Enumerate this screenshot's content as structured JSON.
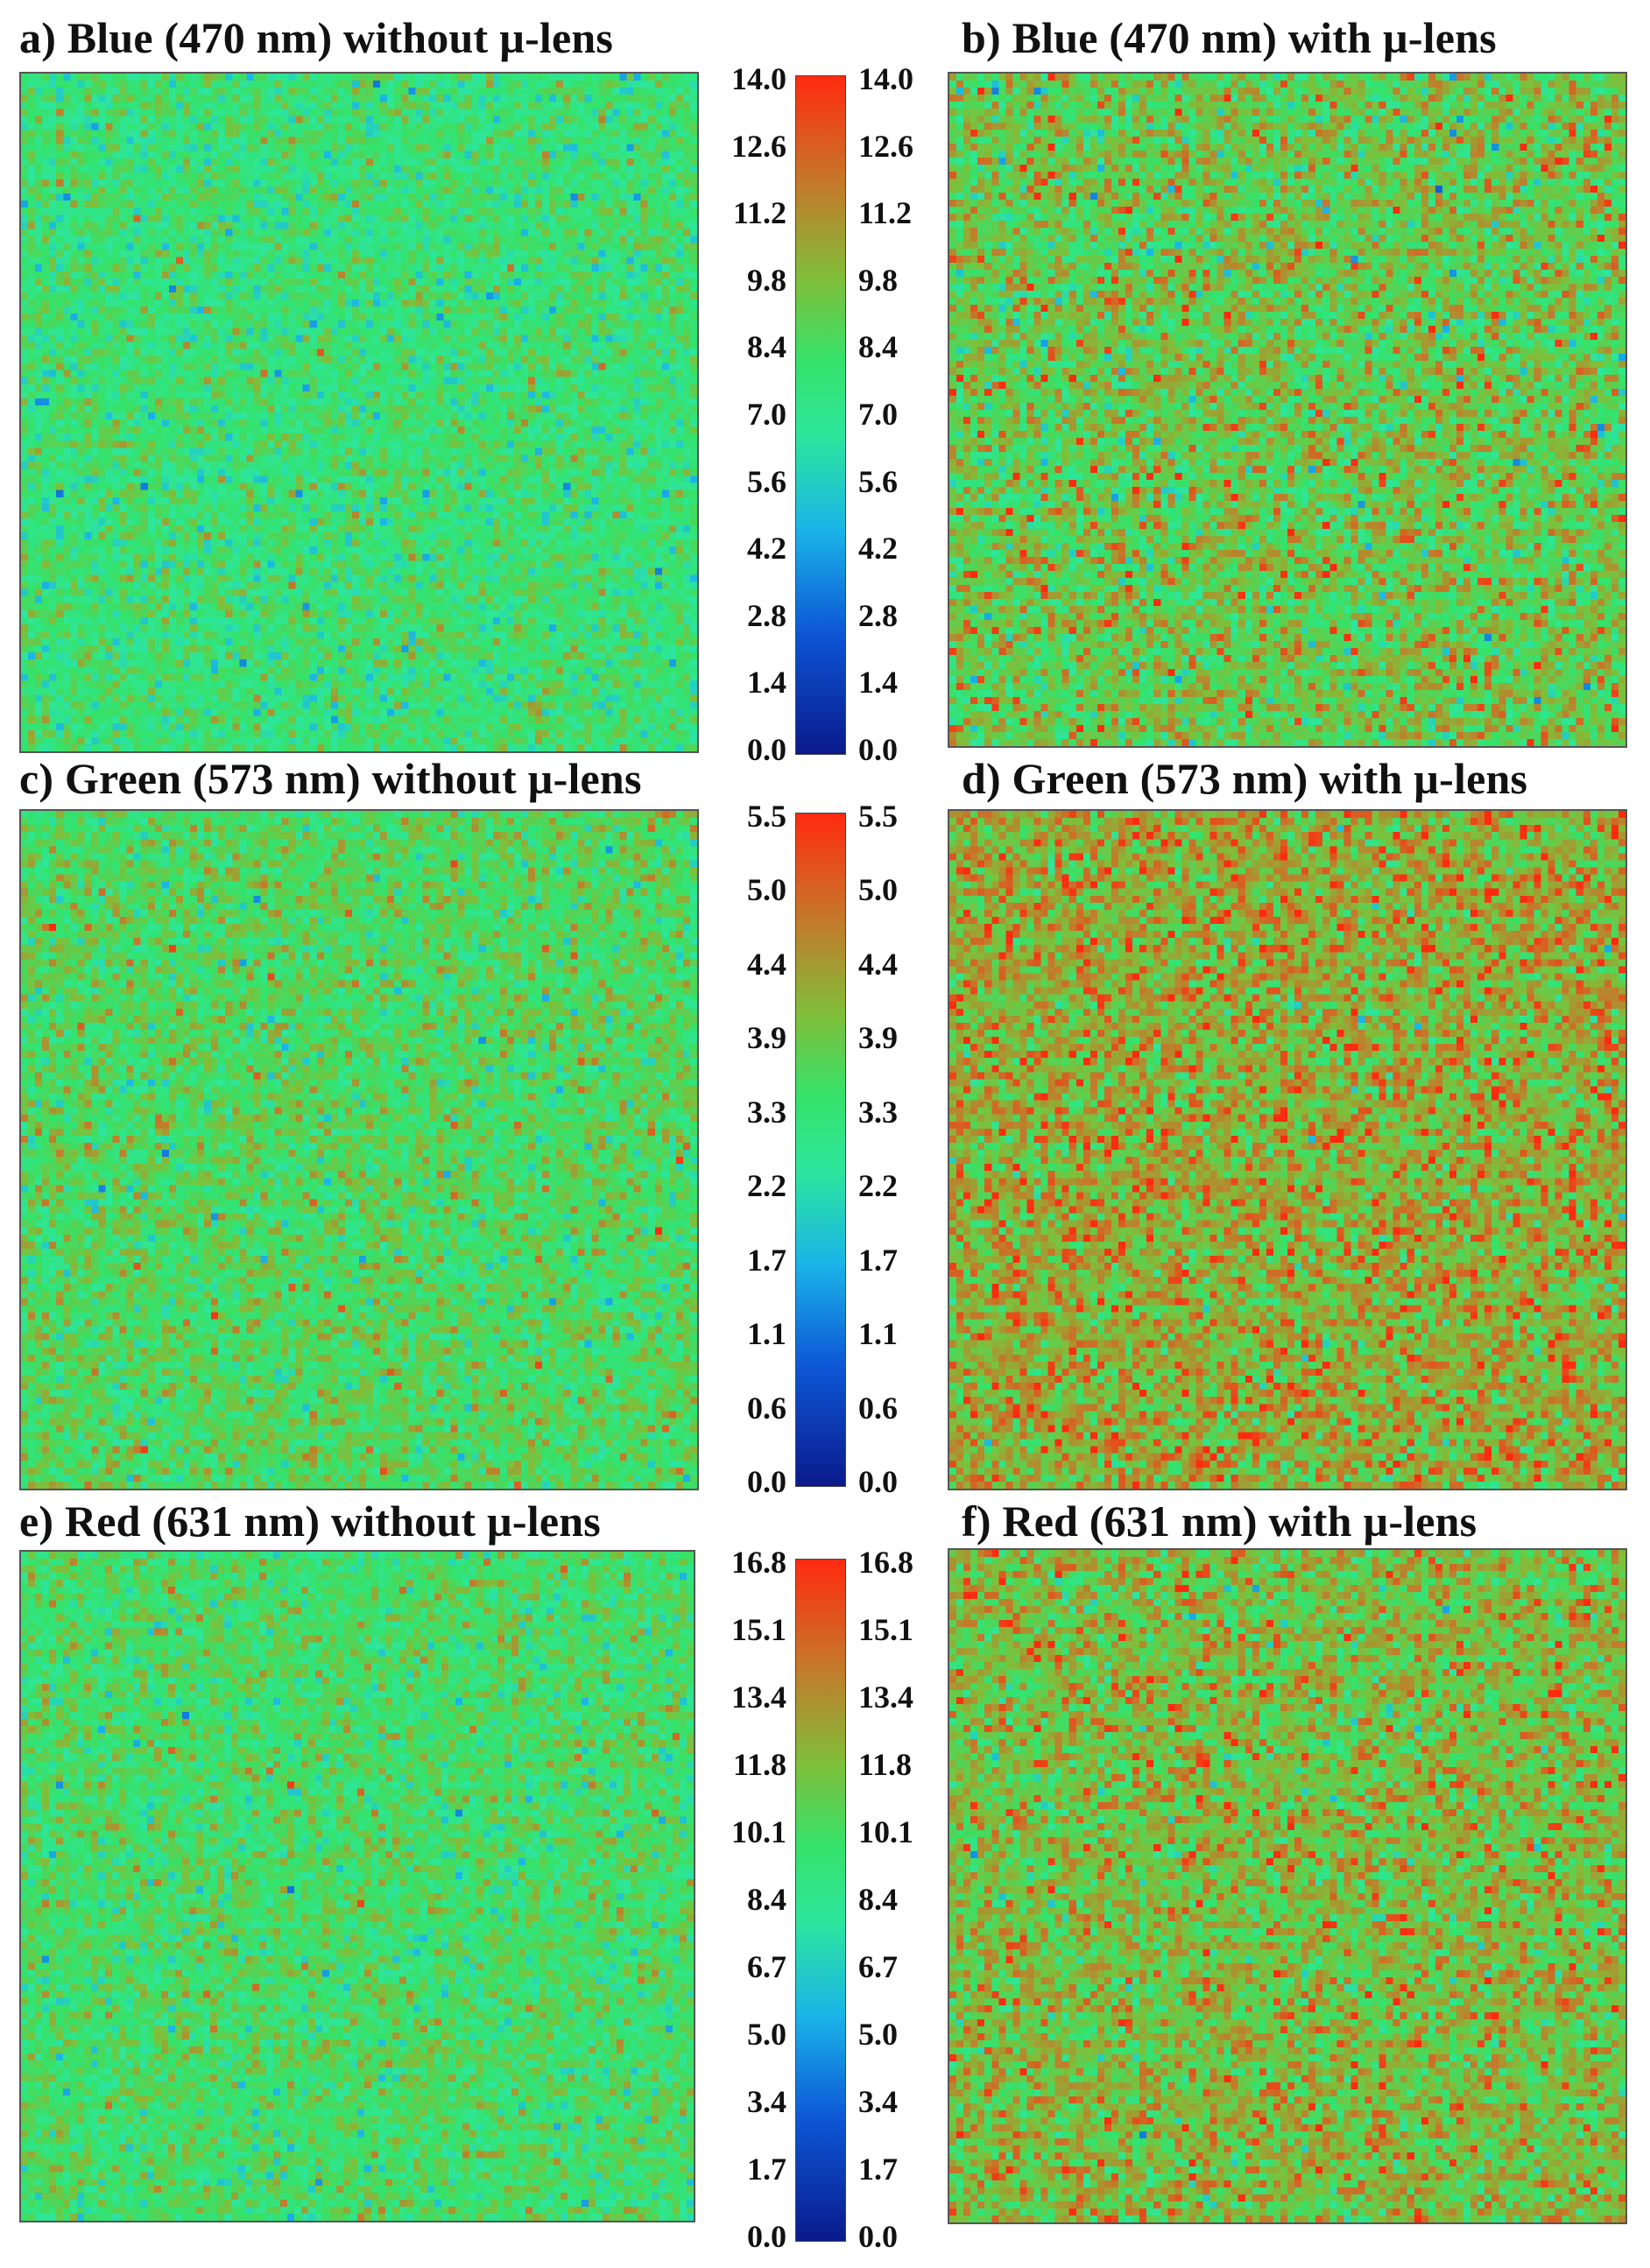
{
  "chart_data": [
    {
      "type": "heatmap",
      "title": "a) Blue (470 nm) without µ-lens",
      "colorbar_ticks": [
        "14.0",
        "12.6",
        "11.2",
        "9.8",
        "8.4",
        "7.0",
        "5.6",
        "4.2",
        "2.8",
        "1.4",
        "0.0"
      ],
      "colorbar_range": [
        0.0,
        14.0
      ],
      "approx_mean": 7.6,
      "approx_std": 1.4
    },
    {
      "type": "heatmap",
      "title": "b) Blue (470 nm) with µ-lens",
      "colorbar_ticks": [
        "14.0",
        "12.6",
        "11.2",
        "9.8",
        "8.4",
        "7.0",
        "5.6",
        "4.2",
        "2.8",
        "1.4",
        "0.0"
      ],
      "colorbar_range": [
        0.0,
        14.0
      ],
      "approx_mean": 9.2,
      "approx_std": 1.9
    },
    {
      "type": "heatmap",
      "title": "c) Green (573 nm) without µ-lens",
      "colorbar_ticks": [
        "5.5",
        "5.0",
        "4.4",
        "3.9",
        "3.3",
        "2.2",
        "1.7",
        "1.1",
        "0.6",
        "0.0"
      ],
      "colorbar_range": [
        0.0,
        5.5
      ],
      "approx_mean": 3.3,
      "approx_std": 0.6
    },
    {
      "type": "heatmap",
      "title": "d) Green (573 nm) with µ-lens",
      "colorbar_ticks": [
        "5.5",
        "5.0",
        "4.4",
        "3.9",
        "3.3",
        "2.2",
        "1.7",
        "1.1",
        "0.6",
        "0.0"
      ],
      "colorbar_range": [
        0.0,
        5.5
      ],
      "approx_mean": 4.1,
      "approx_std": 0.7
    },
    {
      "type": "heatmap",
      "title": "e) Red (631 nm) without µ-lens",
      "colorbar_ticks": [
        "16.8",
        "15.1",
        "13.4",
        "11.8",
        "10.1",
        "8.4",
        "6.7",
        "5.0",
        "3.4",
        "1.7",
        "0.0"
      ],
      "colorbar_range": [
        0.0,
        16.8
      ],
      "approx_mean": 9.7,
      "approx_std": 1.7
    },
    {
      "type": "heatmap",
      "title": "f) Red (631 nm) with µ-lens",
      "colorbar_ticks": [
        "16.8",
        "15.1",
        "13.4",
        "11.8",
        "10.1",
        "8.4",
        "6.7",
        "5.0",
        "3.4",
        "1.7",
        "0.0"
      ],
      "colorbar_range": [
        0.0,
        16.8
      ],
      "approx_mean": 11.8,
      "approx_std": 2.1
    }
  ],
  "colormap": [
    "#0a1a8c",
    "#0d57d6",
    "#1ab4e8",
    "#2de69c",
    "#35e26a",
    "#7fbf3a",
    "#c47a2a",
    "#ff2a10"
  ]
}
